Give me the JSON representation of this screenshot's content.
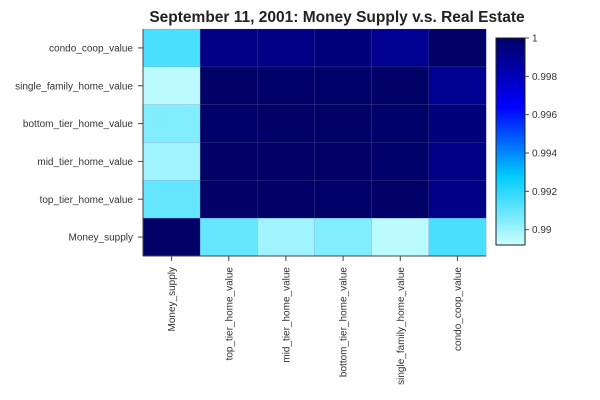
{
  "chart_data": {
    "type": "heatmap",
    "title": "September 11, 2001: Money Supply v.s. Real Estate",
    "x_categories": [
      "Money_supply",
      "top_tier_home_value",
      "mid_tier_home_value",
      "bottom_tier_home_value",
      "single_family_home_value",
      "condo_coop_value"
    ],
    "y_categories": [
      "condo_coop_value",
      "single_family_home_value",
      "bottom_tier_home_value",
      "mid_tier_home_value",
      "top_tier_home_value",
      "Money_supply"
    ],
    "values": [
      [
        0.9915,
        0.9993,
        0.9993,
        0.9995,
        0.999,
        1.0
      ],
      [
        0.9895,
        0.99997,
        0.99995,
        0.99994,
        1.0,
        0.999
      ],
      [
        0.9905,
        0.99995,
        0.99998,
        1.0,
        0.99994,
        0.9995
      ],
      [
        0.99,
        0.99998,
        1.0,
        0.99998,
        0.99995,
        0.9993
      ],
      [
        0.991,
        1.0,
        0.99998,
        0.99995,
        0.99997,
        0.9993
      ],
      [
        1.0,
        0.991,
        0.99,
        0.9905,
        0.9895,
        0.9915
      ]
    ],
    "colorbar": {
      "min": 0.9892,
      "max": 1.0,
      "ticks": [
        "1",
        "0.998",
        "0.996",
        "0.994",
        "0.992",
        "0.99"
      ],
      "tick_values": [
        1.0,
        0.998,
        0.996,
        0.994,
        0.992,
        0.99
      ],
      "colors": [
        "#ccffff",
        "#00ccff",
        "#0000ff",
        "#000066"
      ]
    },
    "grid": false,
    "legend": "right"
  }
}
